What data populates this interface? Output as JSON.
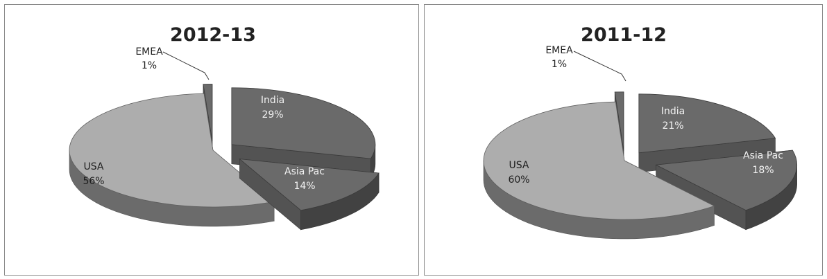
{
  "chart_data": [
    {
      "type": "pie",
      "title": "2012-13",
      "series": [
        {
          "category": "India",
          "value": 29,
          "value_label": "29%",
          "color": "#6a6a6a"
        },
        {
          "category": "Asia Pac",
          "value": 14,
          "value_label": "14%",
          "color": "#6a6a6a"
        },
        {
          "category": "USA",
          "value": 56,
          "value_label": "56%",
          "color": "#adadad"
        },
        {
          "category": "EMEA",
          "value": 1,
          "value_label": "1%",
          "color": "#6a6a6a"
        }
      ],
      "exploded": true,
      "style": "3d"
    },
    {
      "type": "pie",
      "title": "2011-12",
      "series": [
        {
          "category": "India",
          "value": 21,
          "value_label": "21%",
          "color": "#6a6a6a"
        },
        {
          "category": "Asia Pac",
          "value": 18,
          "value_label": "18%",
          "color": "#6a6a6a"
        },
        {
          "category": "USA",
          "value": 60,
          "value_label": "60%",
          "color": "#adadad"
        },
        {
          "category": "EMEA",
          "value": 1,
          "value_label": "1%",
          "color": "#6a6a6a"
        }
      ],
      "exploded": true,
      "style": "3d"
    }
  ]
}
